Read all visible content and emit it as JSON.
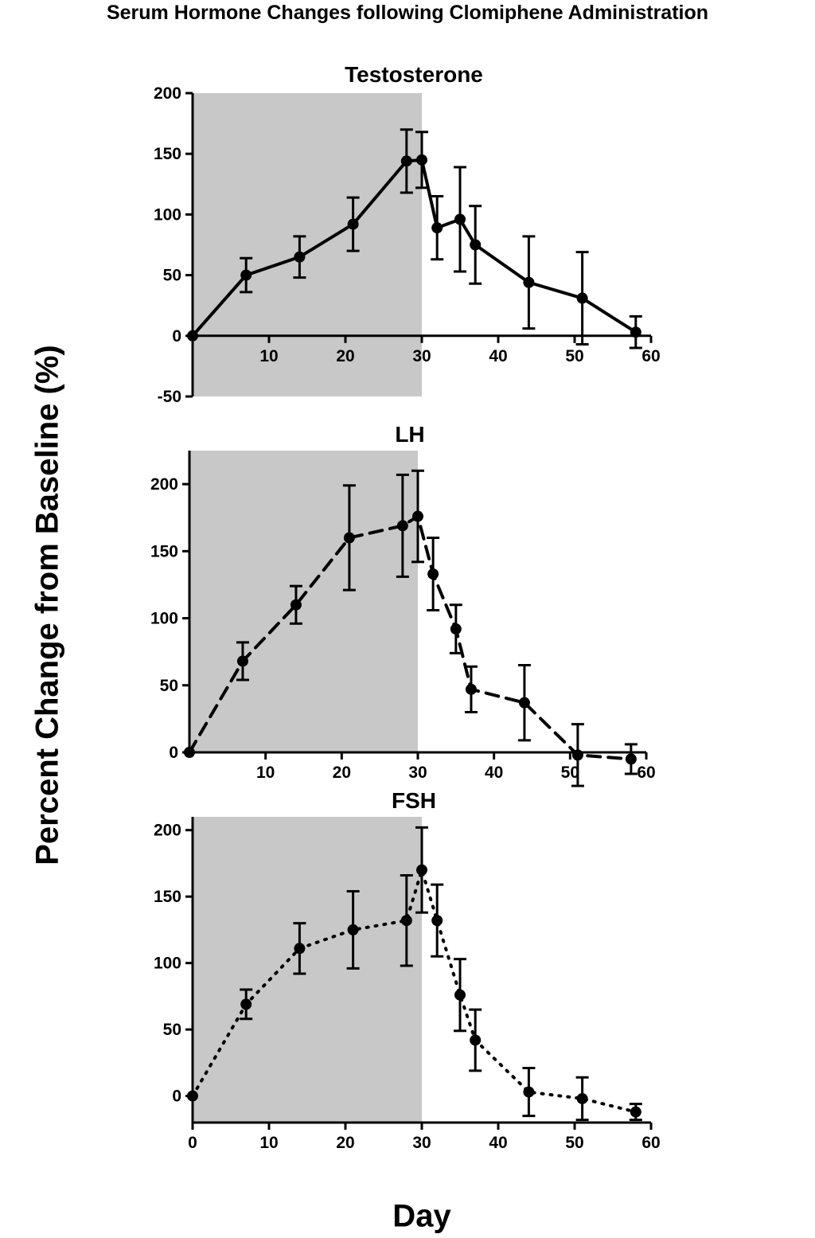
{
  "main_title": "Serum Hormone Changes following Clomiphene Administration",
  "ylabel": "Percent Change from Baseline (%)",
  "xlabel": "Day",
  "colors": {
    "shade": "#c8c8c8",
    "line": "#000000"
  },
  "chart_data": [
    {
      "type": "line",
      "title": "Testosterone",
      "line_style": "solid",
      "shaded_x_range": [
        0,
        30
      ],
      "xlim": [
        0,
        60
      ],
      "ylim": [
        -50,
        200
      ],
      "x_ticks": [
        10,
        20,
        30,
        40,
        50,
        60
      ],
      "y_ticks": [
        -50,
        0,
        50,
        100,
        150,
        200
      ],
      "x_axis_at_zero": true,
      "x": [
        0,
        7,
        14,
        21,
        28,
        30,
        32,
        35,
        37,
        44,
        51,
        58
      ],
      "values": [
        0,
        50,
        65,
        92,
        144,
        145,
        89,
        96,
        75,
        44,
        31,
        3
      ],
      "errors": [
        0,
        14,
        17,
        22,
        26,
        23,
        26,
        43,
        32,
        38,
        38,
        13
      ]
    },
    {
      "type": "line",
      "title": "LH",
      "line_style": "dashed",
      "shaded_x_range": [
        0,
        30
      ],
      "xlim": [
        0,
        60
      ],
      "ylim": [
        0,
        225
      ],
      "x_ticks": [
        10,
        20,
        30,
        40,
        50,
        60
      ],
      "y_ticks": [
        0,
        50,
        100,
        150,
        200
      ],
      "x_axis_at_zero": true,
      "x": [
        0,
        7,
        14,
        21,
        28,
        30,
        32,
        35,
        37,
        44,
        51,
        58
      ],
      "values": [
        0,
        68,
        110,
        160,
        169,
        176,
        133,
        92,
        47,
        37,
        -2,
        -5
      ],
      "errors": [
        0,
        14,
        14,
        39,
        38,
        34,
        27,
        18,
        17,
        28,
        23,
        11
      ]
    },
    {
      "type": "line",
      "title": "FSH",
      "line_style": "dotted",
      "shaded_x_range": [
        0,
        30
      ],
      "xlim": [
        0,
        60
      ],
      "ylim": [
        -20,
        210
      ],
      "x_ticks": [
        0,
        10,
        20,
        30,
        40,
        50,
        60
      ],
      "y_ticks": [
        0,
        50,
        100,
        150,
        200
      ],
      "x_axis_at_zero": false,
      "x": [
        0,
        7,
        14,
        21,
        28,
        30,
        32,
        35,
        37,
        44,
        51,
        58
      ],
      "values": [
        0,
        69,
        111,
        125,
        132,
        170,
        132,
        76,
        42,
        3,
        -2,
        -12
      ],
      "errors": [
        0,
        11,
        19,
        29,
        34,
        32,
        27,
        27,
        23,
        18,
        16,
        6
      ]
    }
  ]
}
